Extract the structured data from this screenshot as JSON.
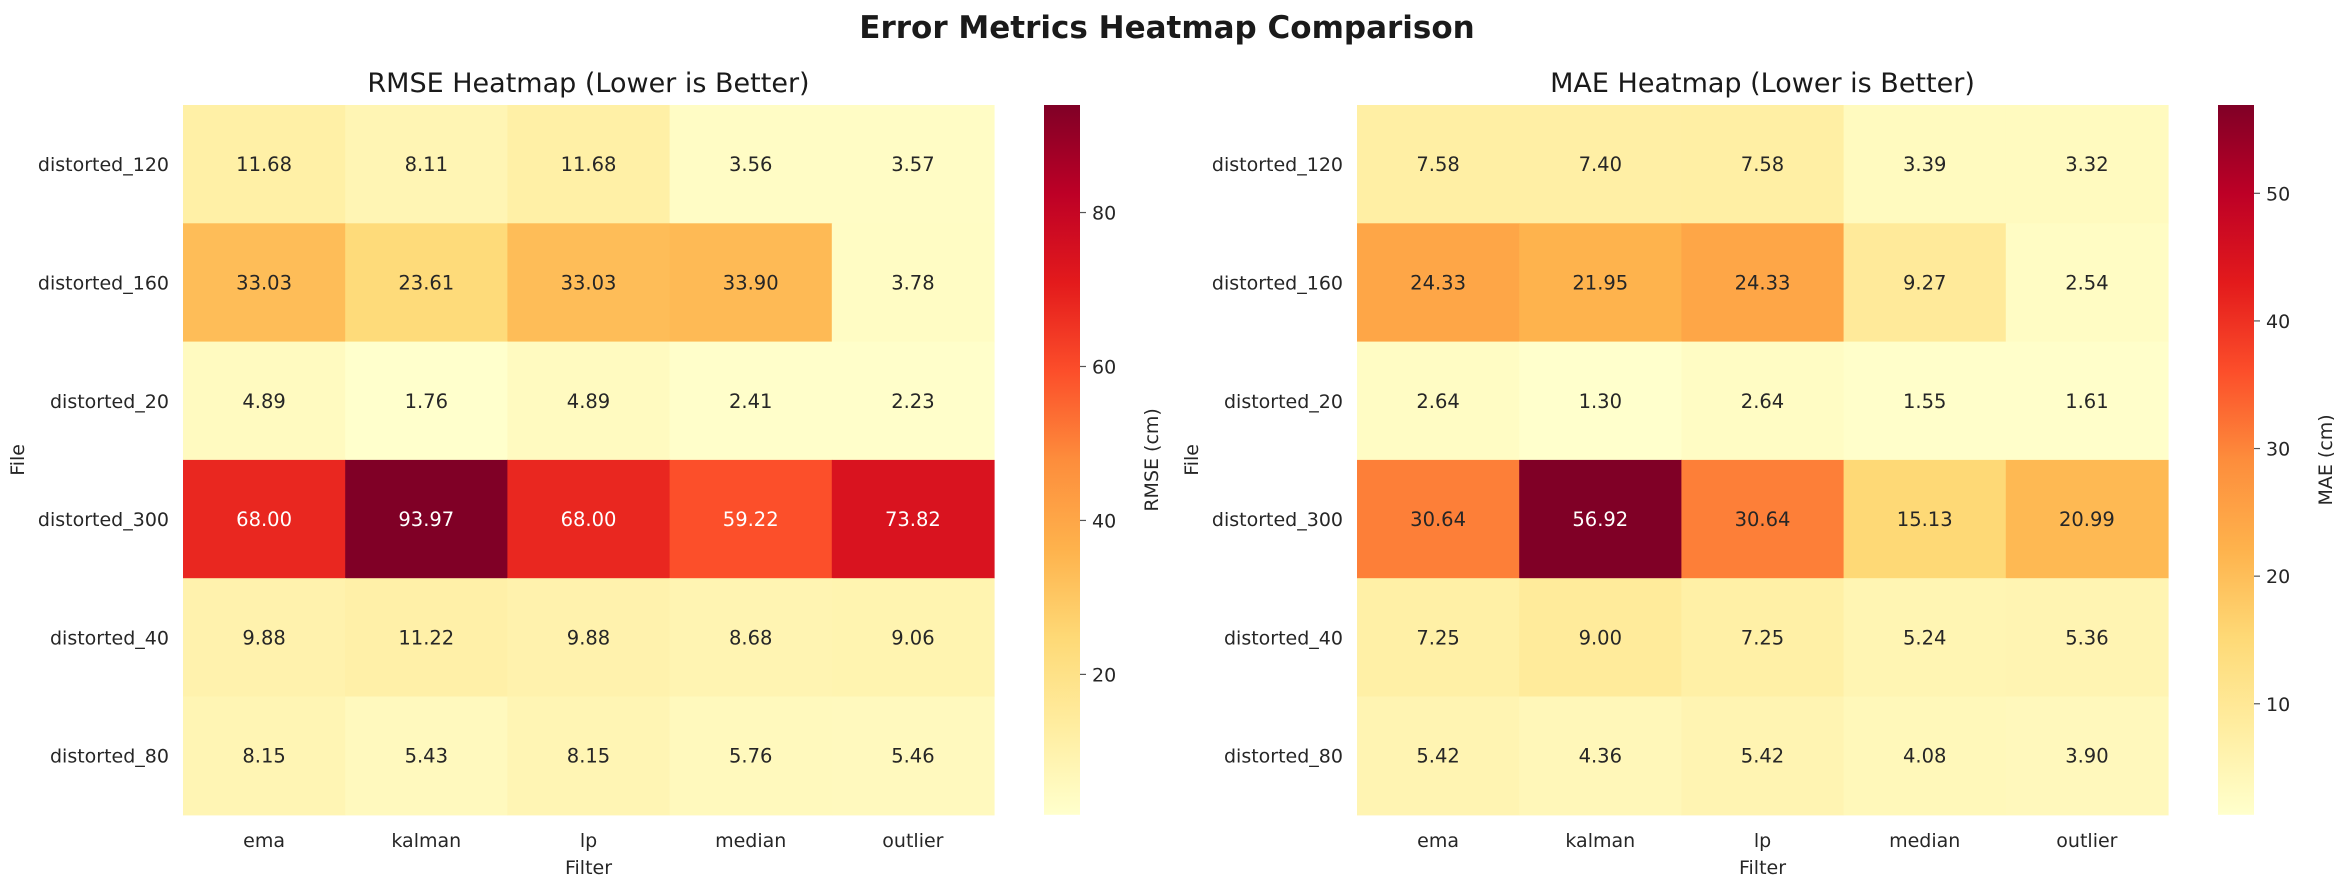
{
  "suptitle": "Error Metrics Heatmap Comparison",
  "chart_data": [
    {
      "type": "heatmap",
      "title": "RMSE Heatmap (Lower is Better)",
      "xlabel": "Filter",
      "ylabel": "File",
      "colorbar_label": "RMSE (cm)",
      "colormap": "YlOrRd",
      "x_categories": [
        "ema",
        "kalman",
        "lp",
        "median",
        "outlier"
      ],
      "y_categories": [
        "distorted_120",
        "distorted_160",
        "distorted_20",
        "distorted_300",
        "distorted_40",
        "distorted_80"
      ],
      "values": [
        [
          11.68,
          8.11,
          11.68,
          3.56,
          3.57
        ],
        [
          33.03,
          23.61,
          33.03,
          33.9,
          3.78
        ],
        [
          4.89,
          1.76,
          4.89,
          2.41,
          2.23
        ],
        [
          68.0,
          93.97,
          68.0,
          59.22,
          73.82
        ],
        [
          9.88,
          11.22,
          9.88,
          8.68,
          9.06
        ],
        [
          8.15,
          5.43,
          8.15,
          5.76,
          5.46
        ]
      ],
      "colorbar_ticks": [
        20,
        40,
        60,
        80
      ],
      "color_range": [
        1.76,
        93.97
      ]
    },
    {
      "type": "heatmap",
      "title": "MAE Heatmap (Lower is Better)",
      "xlabel": "Filter",
      "ylabel": "File",
      "colorbar_label": "MAE (cm)",
      "colormap": "YlOrRd",
      "x_categories": [
        "ema",
        "kalman",
        "lp",
        "median",
        "outlier"
      ],
      "y_categories": [
        "distorted_120",
        "distorted_160",
        "distorted_20",
        "distorted_300",
        "distorted_40",
        "distorted_80"
      ],
      "values": [
        [
          7.58,
          7.4,
          7.58,
          3.39,
          3.32
        ],
        [
          24.33,
          21.95,
          24.33,
          9.27,
          2.54
        ],
        [
          2.64,
          1.3,
          2.64,
          1.55,
          1.61
        ],
        [
          30.64,
          56.92,
          30.64,
          15.13,
          20.99
        ],
        [
          7.25,
          9.0,
          7.25,
          5.24,
          5.36
        ],
        [
          5.42,
          4.36,
          5.42,
          4.08,
          3.9
        ]
      ],
      "colorbar_ticks": [
        10,
        20,
        30,
        40,
        50
      ],
      "color_range": [
        1.3,
        56.92
      ]
    }
  ]
}
